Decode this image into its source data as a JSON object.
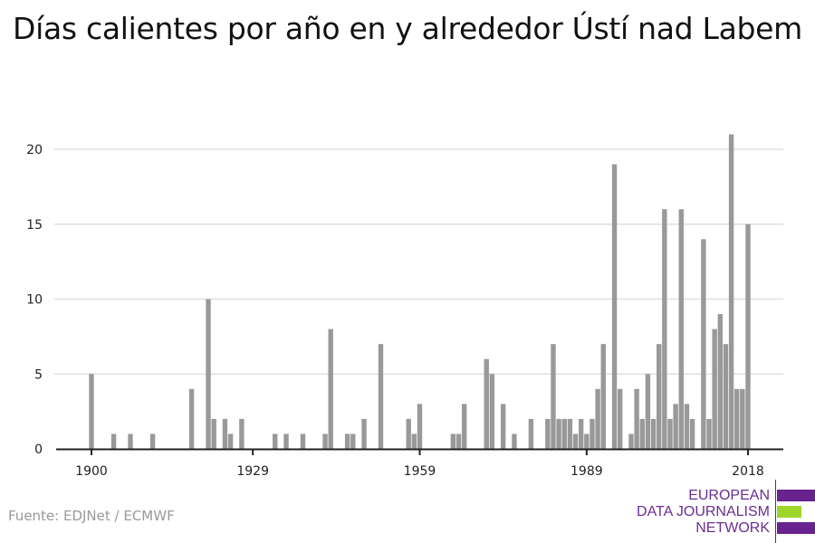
{
  "chart_data": {
    "type": "bar",
    "title": "Días calientes por año en y alrededor Ústí nad Labem",
    "xlabel": "",
    "ylabel": "",
    "xlim": [
      1900,
      2018
    ],
    "ylim": [
      0,
      22
    ],
    "x_ticks": [
      "1900",
      "1929",
      "1959",
      "1989",
      "2018"
    ],
    "y_ticks": [
      "0",
      "5",
      "10",
      "15",
      "20"
    ],
    "grid": true,
    "bar_color": "#999999",
    "points": [
      [
        1900,
        5
      ],
      [
        1904,
        1
      ],
      [
        1907,
        1
      ],
      [
        1911,
        1
      ],
      [
        1918,
        4
      ],
      [
        1921,
        10
      ],
      [
        1922,
        2
      ],
      [
        1924,
        2
      ],
      [
        1925,
        1
      ],
      [
        1927,
        2
      ],
      [
        1933,
        1
      ],
      [
        1935,
        1
      ],
      [
        1938,
        1
      ],
      [
        1942,
        1
      ],
      [
        1943,
        8
      ],
      [
        1946,
        1
      ],
      [
        1947,
        1
      ],
      [
        1949,
        2
      ],
      [
        1952,
        7
      ],
      [
        1957,
        2
      ],
      [
        1958,
        1
      ],
      [
        1959,
        3
      ],
      [
        1965,
        1
      ],
      [
        1966,
        1
      ],
      [
        1967,
        3
      ],
      [
        1971,
        6
      ],
      [
        1972,
        5
      ],
      [
        1974,
        3
      ],
      [
        1976,
        1
      ],
      [
        1979,
        2
      ],
      [
        1982,
        2
      ],
      [
        1983,
        7
      ],
      [
        1984,
        2
      ],
      [
        1985,
        2
      ],
      [
        1986,
        2
      ],
      [
        1987,
        1
      ],
      [
        1988,
        2
      ],
      [
        1989,
        1
      ],
      [
        1990,
        2
      ],
      [
        1991,
        4
      ],
      [
        1992,
        7
      ],
      [
        1994,
        19
      ],
      [
        1995,
        4
      ],
      [
        1997,
        1
      ],
      [
        1998,
        4
      ],
      [
        1999,
        2
      ],
      [
        2000,
        5
      ],
      [
        2001,
        2
      ],
      [
        2002,
        7
      ],
      [
        2003,
        16
      ],
      [
        2004,
        2
      ],
      [
        2005,
        3
      ],
      [
        2006,
        16
      ],
      [
        2007,
        3
      ],
      [
        2008,
        2
      ],
      [
        2010,
        14
      ],
      [
        2011,
        2
      ],
      [
        2012,
        8
      ],
      [
        2013,
        9
      ],
      [
        2014,
        7
      ],
      [
        2015,
        21
      ],
      [
        2016,
        4
      ],
      [
        2017,
        4
      ],
      [
        2018,
        15
      ]
    ]
  },
  "footer": {
    "source": "Fuente: EDJNet / ECMWF",
    "logo_lines": [
      "EUROPEAN",
      "DATA JOURNALISM",
      "NETWORK"
    ],
    "logo_colors": {
      "purple": "#68238f",
      "green": "#9ed62a"
    }
  }
}
